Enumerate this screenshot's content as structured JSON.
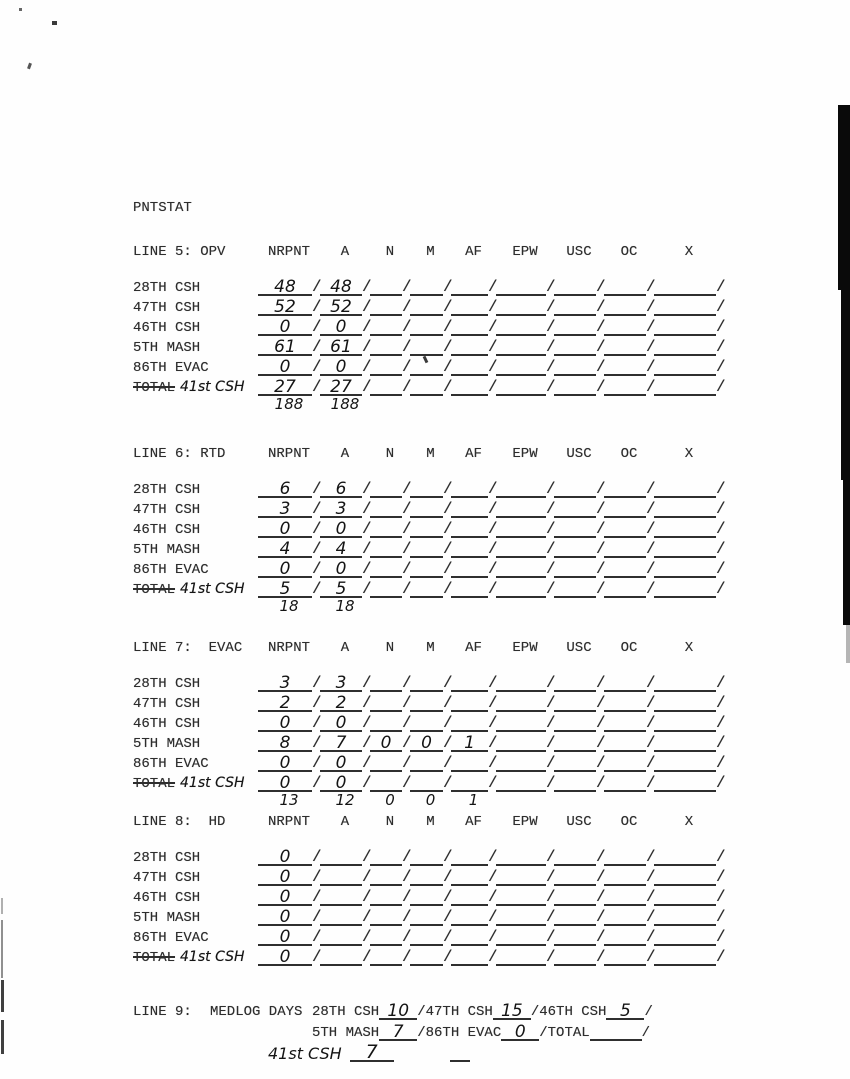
{
  "title": "PNTSTAT",
  "divider": "/",
  "columns": [
    "NRPNT",
    "A",
    "N",
    "M",
    "AF",
    "EPW",
    "USC",
    "OC",
    "X"
  ],
  "sections": [
    {
      "id": "line5",
      "label": "LINE 5: OPV",
      "rows": [
        {
          "label": "28TH CSH",
          "values": [
            "48",
            "48",
            "",
            "",
            "",
            "",
            "",
            "",
            ""
          ]
        },
        {
          "label": "47TH CSH",
          "values": [
            "52",
            "52",
            "",
            "",
            "",
            "",
            "",
            "",
            ""
          ]
        },
        {
          "label": "46TH CSH",
          "values": [
            "0",
            "0",
            "",
            "",
            "",
            "",
            "",
            "",
            ""
          ]
        },
        {
          "label": "5TH MASH",
          "values": [
            "61",
            "61",
            "",
            "",
            "",
            "",
            "",
            "",
            ""
          ]
        },
        {
          "label": "86TH EVAC",
          "values": [
            "0",
            "0",
            "",
            "",
            "",
            "",
            "",
            "",
            ""
          ]
        },
        {
          "label_struck": "TOTAL",
          "label_hw": "41st CSH",
          "values": [
            "27",
            "27",
            "",
            "",
            "",
            "",
            "",
            "",
            ""
          ]
        }
      ],
      "sum": [
        "188",
        "188",
        "",
        "",
        "",
        "",
        "",
        "",
        ""
      ]
    },
    {
      "id": "line6",
      "label": "LINE 6: RTD",
      "rows": [
        {
          "label": "28TH CSH",
          "values": [
            "6",
            "6",
            "",
            "",
            "",
            "",
            "",
            "",
            ""
          ]
        },
        {
          "label": "47TH CSH",
          "values": [
            "3",
            "3",
            "",
            "",
            "",
            "",
            "",
            "",
            ""
          ]
        },
        {
          "label": "46TH CSH",
          "values": [
            "0",
            "0",
            "",
            "",
            "",
            "",
            "",
            "",
            ""
          ]
        },
        {
          "label": "5TH MASH",
          "values": [
            "4",
            "4",
            "",
            "",
            "",
            "",
            "",
            "",
            ""
          ]
        },
        {
          "label": "86TH EVAC",
          "values": [
            "0",
            "0",
            "",
            "",
            "",
            "",
            "",
            "",
            ""
          ]
        },
        {
          "label_struck": "TOTAL",
          "label_hw": "41st CSH",
          "values": [
            "5",
            "5",
            "",
            "",
            "",
            "",
            "",
            "",
            ""
          ]
        }
      ],
      "sum": [
        "18",
        "18",
        "",
        "",
        "",
        "",
        "",
        "",
        ""
      ]
    },
    {
      "id": "line7",
      "label": "LINE 7:  EVAC",
      "rows": [
        {
          "label": "28TH CSH",
          "values": [
            "3",
            "3",
            "",
            "",
            "",
            "",
            "",
            "",
            ""
          ]
        },
        {
          "label": "47TH CSH",
          "values": [
            "2",
            "2",
            "",
            "",
            "",
            "",
            "",
            "",
            ""
          ]
        },
        {
          "label": "46TH CSH",
          "values": [
            "0",
            "0",
            "",
            "",
            "",
            "",
            "",
            "",
            ""
          ]
        },
        {
          "label": "5TH MASH",
          "values": [
            "8",
            "7",
            "0",
            "0",
            "1",
            "",
            "",
            "",
            ""
          ]
        },
        {
          "label": "86TH EVAC",
          "values": [
            "0",
            "0",
            "",
            "",
            "",
            "",
            "",
            "",
            ""
          ]
        },
        {
          "label_struck": "TOTAL",
          "label_hw": "41st CSH",
          "values": [
            "0",
            "0",
            "",
            "",
            "",
            "",
            "",
            "",
            ""
          ]
        }
      ],
      "sum": [
        "13",
        "12",
        "0",
        "0",
        "1",
        "",
        "",
        "",
        ""
      ]
    },
    {
      "id": "line8",
      "label": "LINE 8:  HD",
      "rows": [
        {
          "label": "28TH CSH",
          "values": [
            "0",
            "",
            "",
            "",
            "",
            "",
            "",
            "",
            ""
          ]
        },
        {
          "label": "47TH CSH",
          "values": [
            "0",
            "",
            "",
            "",
            "",
            "",
            "",
            "",
            ""
          ]
        },
        {
          "label": "46TH CSH",
          "values": [
            "0",
            "",
            "",
            "",
            "",
            "",
            "",
            "",
            ""
          ]
        },
        {
          "label": "5TH MASH",
          "values": [
            "0",
            "",
            "",
            "",
            "",
            "",
            "",
            "",
            ""
          ]
        },
        {
          "label": "86TH EVAC",
          "values": [
            "0",
            "",
            "",
            "",
            "",
            "",
            "",
            "",
            ""
          ]
        },
        {
          "label_struck": "TOTAL",
          "label_hw": "41st CSH",
          "values": [
            "0",
            "",
            "",
            "",
            "",
            "",
            "",
            "",
            ""
          ]
        }
      ],
      "sum": null
    }
  ],
  "line9": {
    "header_label": "LINE 9:",
    "title": "MEDLOG DAYS",
    "entries_row1": [
      {
        "label": "28TH CSH",
        "value": "10"
      },
      {
        "label": "/47TH CSH",
        "value": "15"
      },
      {
        "label": "/46TH CSH",
        "value": "5"
      }
    ],
    "entries_row2": [
      {
        "label": "5TH MASH",
        "value": "7"
      },
      {
        "label": "/86TH EVAC",
        "value": "0"
      },
      {
        "label": "/TOTAL",
        "value": ""
      }
    ],
    "trailing_slash": "/",
    "row3_label_hw": "41st CSH",
    "row3_value": "7"
  }
}
